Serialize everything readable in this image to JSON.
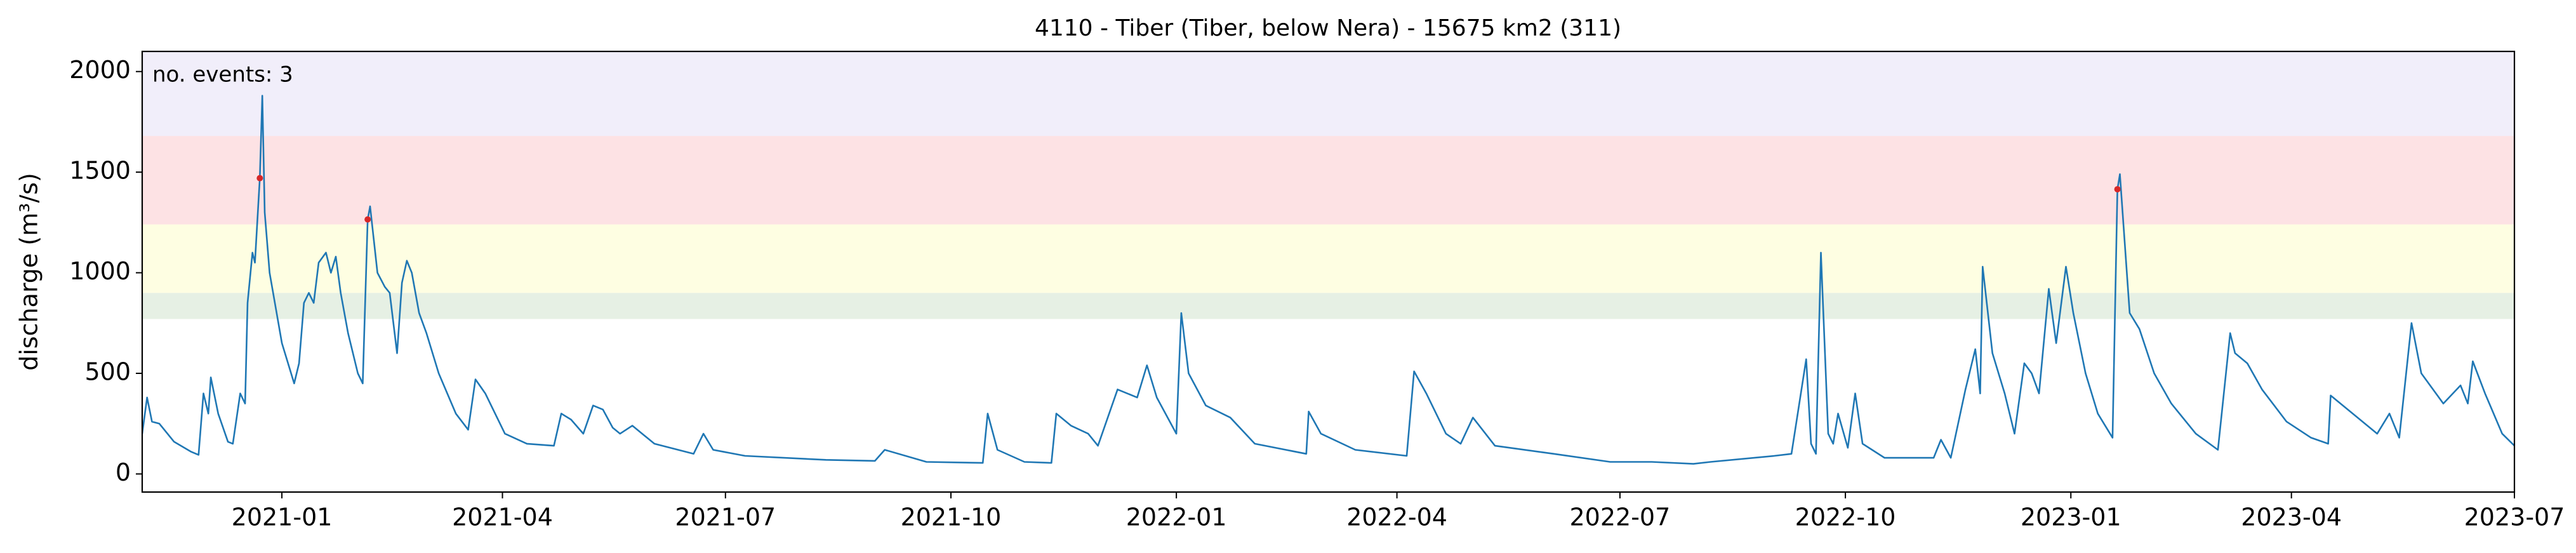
{
  "chart_data": {
    "type": "line",
    "title": "4110 - Tiber (Tiber, below Nera) - 15675 km2 (311)",
    "ylabel": "discharge (m³/s)",
    "annotation": "no. events: 3",
    "annotation_color": "#d62728",
    "xlim": [
      "2020-11-05",
      "2023-07-01"
    ],
    "xticks": [
      {
        "value": "2021-01-01",
        "label": "2021-01"
      },
      {
        "value": "2021-04-01",
        "label": "2021-04"
      },
      {
        "value": "2021-07-01",
        "label": "2021-07"
      },
      {
        "value": "2021-10-01",
        "label": "2021-10"
      },
      {
        "value": "2022-01-01",
        "label": "2022-01"
      },
      {
        "value": "2022-04-01",
        "label": "2022-04"
      },
      {
        "value": "2022-07-01",
        "label": "2022-07"
      },
      {
        "value": "2022-10-01",
        "label": "2022-10"
      },
      {
        "value": "2023-01-01",
        "label": "2023-01"
      },
      {
        "value": "2023-04-01",
        "label": "2023-04"
      },
      {
        "value": "2023-07-01",
        "label": "2023-07"
      }
    ],
    "ylim": [
      -90,
      2100
    ],
    "yticks": [
      0,
      500,
      1000,
      1500,
      2000
    ],
    "bands": [
      {
        "from": 770,
        "to": 900,
        "color": "#e6f0e4"
      },
      {
        "from": 900,
        "to": 1240,
        "color": "#fefee2"
      },
      {
        "from": 1240,
        "to": 1680,
        "color": "#fde2e4"
      },
      {
        "from": 1680,
        "to": 2100,
        "color": "#f1eefa"
      }
    ],
    "x": [
      "2020-11-05",
      "2020-11-07",
      "2020-11-09",
      "2020-11-12",
      "2020-11-18",
      "2020-11-25",
      "2020-11-28",
      "2020-11-30",
      "2020-12-02",
      "2020-12-03",
      "2020-12-06",
      "2020-12-10",
      "2020-12-12",
      "2020-12-15",
      "2020-12-17",
      "2020-12-18",
      "2020-12-20",
      "2020-12-21",
      "2020-12-23",
      "2020-12-24",
      "2020-12-25",
      "2020-12-27",
      "2021-01-01",
      "2021-01-06",
      "2021-01-08",
      "2021-01-10",
      "2021-01-12",
      "2021-01-14",
      "2021-01-16",
      "2021-01-19",
      "2021-01-21",
      "2021-01-23",
      "2021-01-25",
      "2021-01-28",
      "2021-02-01",
      "2021-02-03",
      "2021-02-05",
      "2021-02-06",
      "2021-02-09",
      "2021-02-12",
      "2021-02-14",
      "2021-02-17",
      "2021-02-19",
      "2021-02-21",
      "2021-02-23",
      "2021-02-26",
      "2021-03-01",
      "2021-03-06",
      "2021-03-13",
      "2021-03-18",
      "2021-03-21",
      "2021-03-25",
      "2021-04-02",
      "2021-04-11",
      "2021-04-22",
      "2021-04-25",
      "2021-04-29",
      "2021-05-04",
      "2021-05-08",
      "2021-05-12",
      "2021-05-16",
      "2021-05-19",
      "2021-05-24",
      "2021-06-02",
      "2021-06-18",
      "2021-06-22",
      "2021-06-26",
      "2021-07-09",
      "2021-08-11",
      "2021-08-31",
      "2021-09-04",
      "2021-09-21",
      "2021-10-14",
      "2021-10-16",
      "2021-10-20",
      "2021-10-31",
      "2021-11-11",
      "2021-11-13",
      "2021-11-19",
      "2021-11-26",
      "2021-11-30",
      "2021-12-08",
      "2021-12-16",
      "2021-12-20",
      "2021-12-24",
      "2022-01-01",
      "2022-01-03",
      "2022-01-06",
      "2022-01-13",
      "2022-01-23",
      "2022-02-02",
      "2022-02-23",
      "2022-02-24",
      "2022-03-01",
      "2022-03-15",
      "2022-04-05",
      "2022-04-08",
      "2022-04-13",
      "2022-04-21",
      "2022-04-27",
      "2022-05-02",
      "2022-05-11",
      "2022-06-04",
      "2022-06-27",
      "2022-07-14",
      "2022-07-31",
      "2022-08-07",
      "2022-09-02",
      "2022-09-09",
      "2022-09-15",
      "2022-09-17",
      "2022-09-19",
      "2022-09-21",
      "2022-09-24",
      "2022-09-26",
      "2022-09-28",
      "2022-10-02",
      "2022-10-05",
      "2022-10-08",
      "2022-10-17",
      "2022-11-06",
      "2022-11-09",
      "2022-11-13",
      "2022-11-19",
      "2022-11-23",
      "2022-11-25",
      "2022-11-26",
      "2022-11-30",
      "2022-12-05",
      "2022-12-09",
      "2022-12-13",
      "2022-12-16",
      "2022-12-19",
      "2022-12-23",
      "2022-12-26",
      "2022-12-30",
      "2023-01-02",
      "2023-01-07",
      "2023-01-12",
      "2023-01-18",
      "2023-01-20",
      "2023-01-21",
      "2023-01-25",
      "2023-01-29",
      "2023-02-04",
      "2023-02-11",
      "2023-02-21",
      "2023-03-02",
      "2023-03-07",
      "2023-03-09",
      "2023-03-14",
      "2023-03-20",
      "2023-03-30",
      "2023-04-09",
      "2023-04-16",
      "2023-04-17",
      "2023-04-26",
      "2023-05-06",
      "2023-05-11",
      "2023-05-15",
      "2023-05-20",
      "2023-05-24",
      "2023-06-02",
      "2023-06-09",
      "2023-06-12",
      "2023-06-14",
      "2023-06-19",
      "2023-06-26",
      "2023-07-01"
    ],
    "series": [
      {
        "name": "discharge",
        "color": "#1f77b4",
        "values": [
          200,
          380,
          260,
          250,
          160,
          110,
          95,
          400,
          300,
          480,
          300,
          160,
          150,
          400,
          350,
          850,
          1100,
          1050,
          1470,
          1880,
          1300,
          1000,
          650,
          450,
          550,
          850,
          900,
          850,
          1050,
          1100,
          1000,
          1080,
          900,
          700,
          500,
          450,
          1265,
          1330,
          1000,
          930,
          900,
          600,
          950,
          1060,
          1000,
          800,
          700,
          500,
          300,
          220,
          470,
          400,
          200,
          150,
          140,
          300,
          270,
          200,
          340,
          320,
          230,
          200,
          240,
          150,
          100,
          200,
          120,
          90,
          70,
          65,
          120,
          60,
          55,
          300,
          120,
          60,
          55,
          300,
          240,
          200,
          140,
          420,
          380,
          540,
          380,
          200,
          800,
          500,
          340,
          280,
          150,
          100,
          310,
          200,
          120,
          90,
          510,
          400,
          200,
          150,
          280,
          140,
          100,
          60,
          60,
          50,
          60,
          90,
          100,
          570,
          150,
          100,
          1100,
          200,
          150,
          300,
          130,
          400,
          150,
          80,
          80,
          170,
          80,
          420,
          620,
          400,
          1030,
          600,
          400,
          200,
          550,
          500,
          400,
          920,
          650,
          1030,
          800,
          500,
          300,
          180,
          1415,
          1490,
          800,
          720,
          500,
          350,
          200,
          120,
          700,
          600,
          550,
          420,
          260,
          180,
          150,
          390,
          300,
          200,
          300,
          180,
          750,
          500,
          350,
          440,
          350,
          560,
          400,
          200,
          140
        ]
      }
    ],
    "events": {
      "color": "#d62728",
      "x": [
        "2020-12-23",
        "2021-02-05",
        "2023-01-20"
      ],
      "values": [
        1470,
        1265,
        1415
      ]
    }
  }
}
